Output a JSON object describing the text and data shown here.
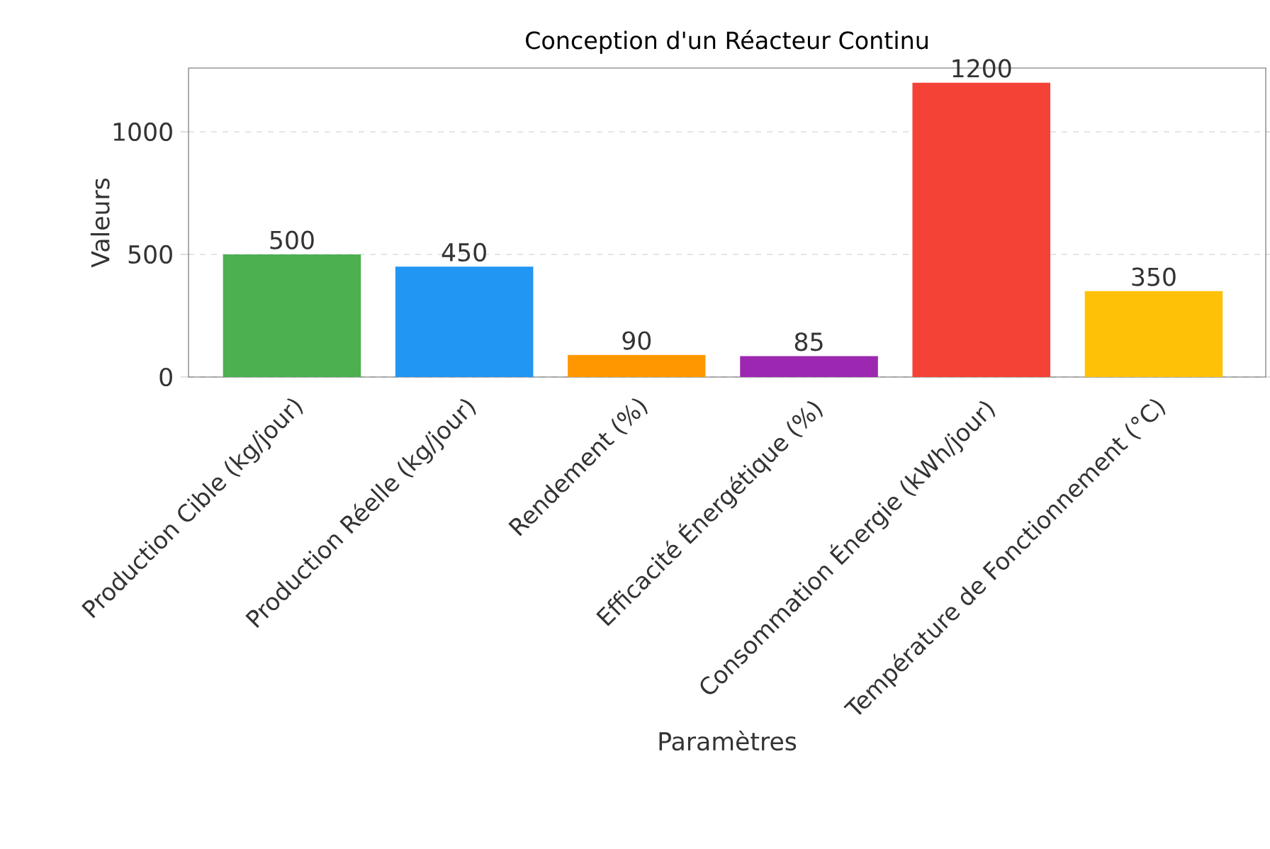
{
  "chart_data": {
    "type": "bar",
    "title": "Conception d'un Réacteur Continu",
    "xlabel": "Paramètres",
    "ylabel": "Valeurs",
    "categories": [
      "Production Cible (kg/jour)",
      "Production Réelle (kg/jour)",
      "Rendement (%)",
      "Efficacité Énergétique (%)",
      "Consommation Énergie (kWh/jour)",
      "Température de Fonctionnement (°C)"
    ],
    "values": [
      500,
      450,
      90,
      85,
      1200,
      350
    ],
    "colors": [
      "#4caf50",
      "#2196f3",
      "#ff9800",
      "#9c27b0",
      "#f44336",
      "#ffc107"
    ],
    "ylim": [
      0,
      1260
    ],
    "yticks": [
      0,
      500,
      1000
    ],
    "grid": "y",
    "data_labels": true
  }
}
